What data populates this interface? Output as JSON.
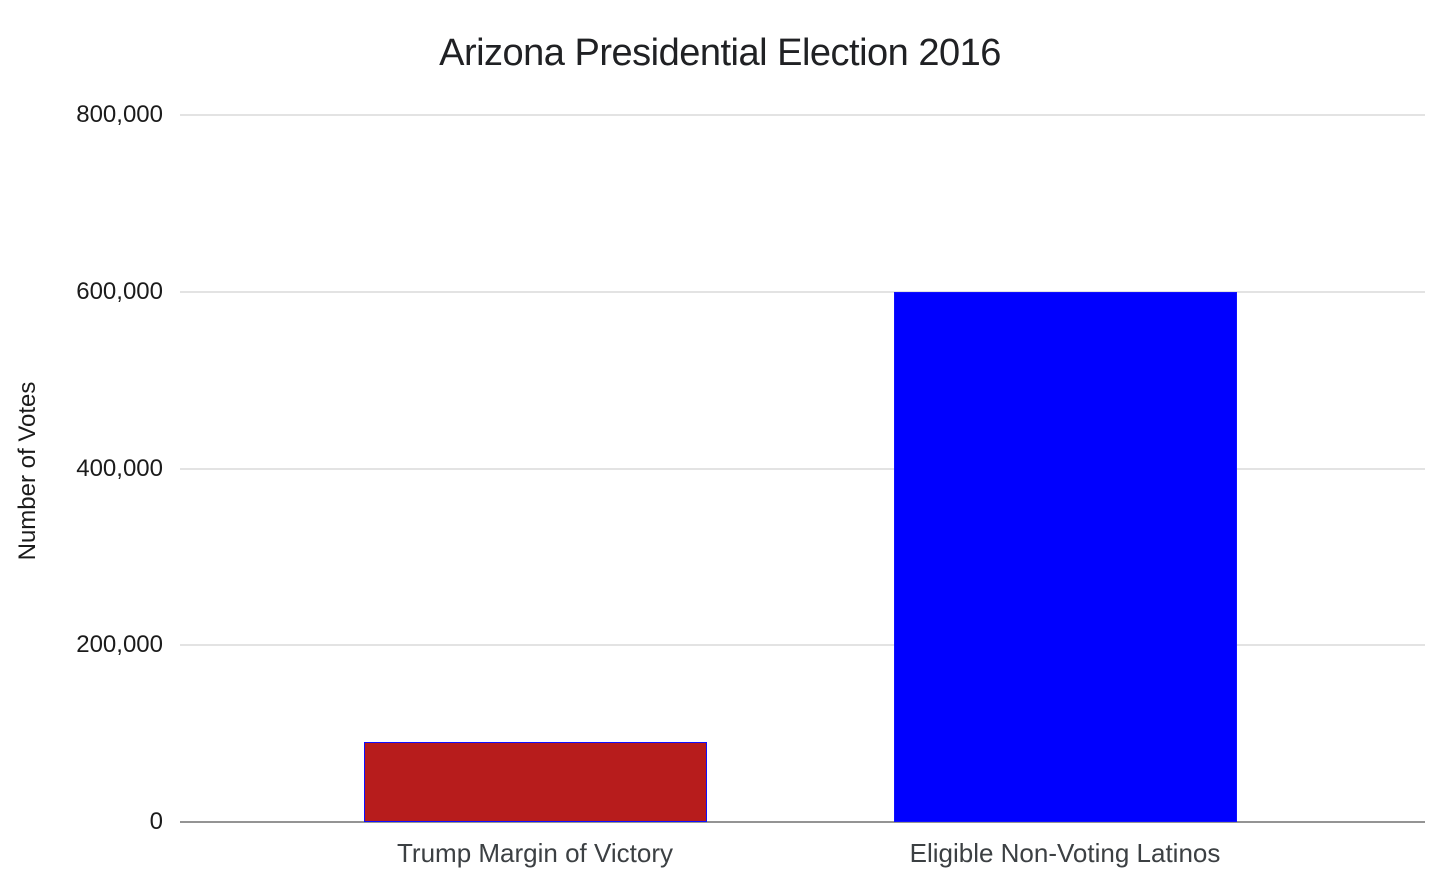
{
  "chart_data": {
    "type": "bar",
    "title": "Arizona Presidential Election 2016",
    "xlabel": "",
    "ylabel": "Number of Votes",
    "categories": [
      "Trump Margin of Victory",
      "Eligible Non-Voting Latinos"
    ],
    "values": [
      90000,
      600000
    ],
    "bar_colors": [
      "#b71c1c",
      "#0000ff"
    ],
    "bar_stroke_color": "#0f0fff",
    "ylim": [
      0,
      800000
    ],
    "yticks": [
      0,
      200000,
      400000,
      600000,
      800000
    ],
    "ytick_labels": [
      "0",
      "200,000",
      "400,000",
      "600,000",
      "800,000"
    ],
    "grid": true,
    "legend": "none",
    "gridline_color": "#e3e3e3",
    "axis_line_color": "#949494",
    "title_color": "#202124",
    "tick_label_color": "#1b1b1b",
    "category_label_color": "#3c4043",
    "background_color": "#ffffff"
  }
}
